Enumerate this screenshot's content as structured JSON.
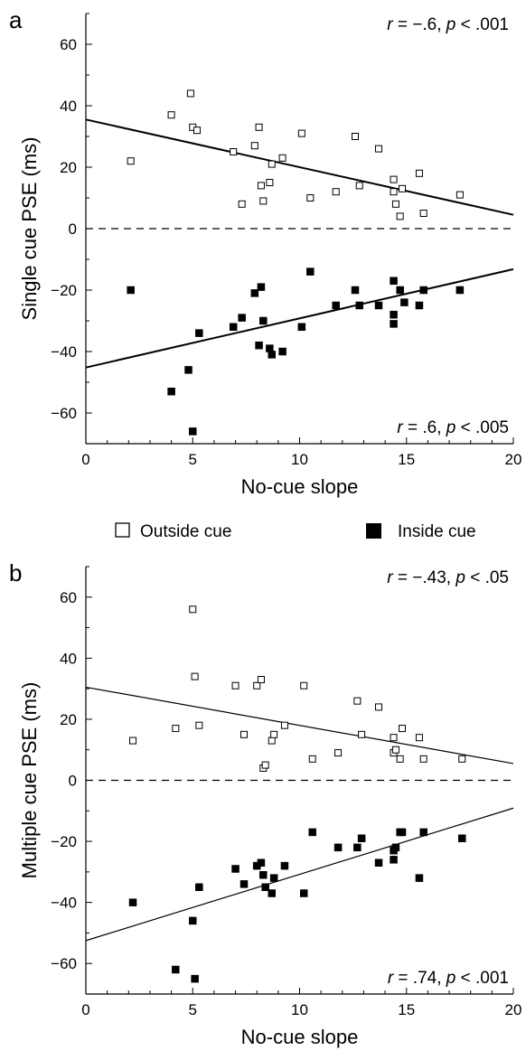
{
  "legend": {
    "outside_label": "Outside cue",
    "inside_label": "Inside cue"
  },
  "chart_data": [
    {
      "type": "scatter",
      "panel_label": "a",
      "xlabel": "No-cue slope",
      "ylabel": "Single cue PSE (ms)",
      "xlim": [
        0,
        20
      ],
      "ylim": [
        -70,
        70
      ],
      "xticks": [
        0,
        5,
        10,
        15,
        20
      ],
      "yticks": [
        -60,
        -40,
        -20,
        0,
        20,
        40,
        60
      ],
      "grid": false,
      "zero_line": "dashed",
      "annotation_top": {
        "parts": [
          "r",
          " = −.6, ",
          "p",
          " < .001"
        ]
      },
      "annotation_bottom": {
        "parts": [
          "r",
          " = .6, ",
          "p",
          " < .005"
        ]
      },
      "series": [
        {
          "name": "Outside cue",
          "marker": "open-square",
          "x": [
            2.1,
            4.0,
            4.9,
            5.0,
            5.2,
            6.9,
            7.3,
            7.9,
            8.1,
            8.2,
            8.3,
            8.6,
            8.7,
            9.2,
            10.1,
            10.5,
            11.7,
            12.6,
            12.8,
            13.7,
            14.4,
            14.4,
            14.5,
            14.7,
            14.8,
            15.6,
            15.8,
            17.5
          ],
          "y": [
            22,
            37,
            44,
            33,
            32,
            25,
            8,
            27,
            33,
            14,
            9,
            15,
            21,
            23,
            31,
            10,
            12,
            30,
            14,
            26,
            16,
            12,
            8,
            4,
            13,
            18,
            5,
            11
          ]
        },
        {
          "name": "Inside cue",
          "marker": "filled-square",
          "x": [
            2.1,
            4.0,
            4.8,
            5.0,
            5.3,
            6.9,
            7.3,
            7.9,
            8.1,
            8.2,
            8.3,
            8.6,
            8.7,
            9.2,
            10.1,
            10.5,
            11.7,
            12.6,
            12.8,
            13.7,
            14.4,
            14.4,
            14.4,
            14.7,
            14.9,
            15.6,
            15.8,
            17.5
          ],
          "y": [
            -20,
            -53,
            -46,
            -66,
            -34,
            -32,
            -29,
            -21,
            -38,
            -19,
            -30,
            -39,
            -41,
            -40,
            -32,
            -14,
            -25,
            -20,
            -25,
            -25,
            -17,
            -28,
            -31,
            -20,
            -24,
            -25,
            -20,
            -20
          ]
        }
      ],
      "fits": [
        {
          "series": "Outside cue",
          "intercept": 35.5,
          "slope": -1.55
        },
        {
          "series": "Inside cue",
          "intercept": -45.2,
          "slope": 1.6
        }
      ]
    },
    {
      "type": "scatter",
      "panel_label": "b",
      "xlabel": "No-cue slope",
      "ylabel": "Multiple cue PSE (ms)",
      "xlim": [
        0,
        20
      ],
      "ylim": [
        -70,
        70
      ],
      "xticks": [
        0,
        5,
        10,
        15,
        20
      ],
      "yticks": [
        -60,
        -40,
        -20,
        0,
        20,
        40,
        60
      ],
      "grid": false,
      "zero_line": "dashed",
      "annotation_top": {
        "parts": [
          "r",
          " = −.43, ",
          "p",
          " < .05"
        ]
      },
      "annotation_bottom": {
        "parts": [
          "r",
          " = .74, ",
          "p",
          " < .001"
        ]
      },
      "series": [
        {
          "name": "Outside cue",
          "marker": "open-square",
          "x": [
            2.2,
            4.2,
            5.0,
            5.1,
            5.3,
            7.0,
            7.4,
            8.0,
            8.2,
            8.3,
            8.4,
            8.7,
            8.8,
            9.3,
            10.2,
            10.6,
            11.8,
            12.7,
            12.9,
            13.7,
            14.4,
            14.4,
            14.5,
            14.7,
            14.8,
            15.6,
            15.8,
            17.6
          ],
          "y": [
            13,
            17,
            56,
            34,
            18,
            31,
            15,
            31,
            33,
            4,
            5,
            13,
            15,
            18,
            31,
            7,
            9,
            26,
            15,
            24,
            14,
            9,
            10,
            7,
            17,
            14,
            7,
            7
          ]
        },
        {
          "name": "Inside cue",
          "marker": "filled-square",
          "x": [
            2.2,
            4.2,
            5.0,
            5.1,
            5.3,
            7.0,
            7.4,
            8.0,
            8.2,
            8.3,
            8.4,
            8.7,
            8.8,
            9.3,
            10.2,
            10.6,
            11.8,
            12.7,
            12.9,
            13.7,
            14.4,
            14.4,
            14.5,
            14.7,
            14.8,
            15.6,
            15.8,
            17.6
          ],
          "y": [
            -40,
            -62,
            -46,
            -65,
            -35,
            -29,
            -34,
            -28,
            -27,
            -31,
            -35,
            -37,
            -32,
            -28,
            -37,
            -17,
            -22,
            -22,
            -19,
            -27,
            -23,
            -26,
            -22,
            -17,
            -17,
            -32,
            -17,
            -19
          ]
        }
      ],
      "fits": [
        {
          "series": "Outside cue",
          "intercept": 30.5,
          "slope": -1.25
        },
        {
          "series": "Inside cue",
          "intercept": -52.5,
          "slope": 2.17
        }
      ]
    }
  ]
}
